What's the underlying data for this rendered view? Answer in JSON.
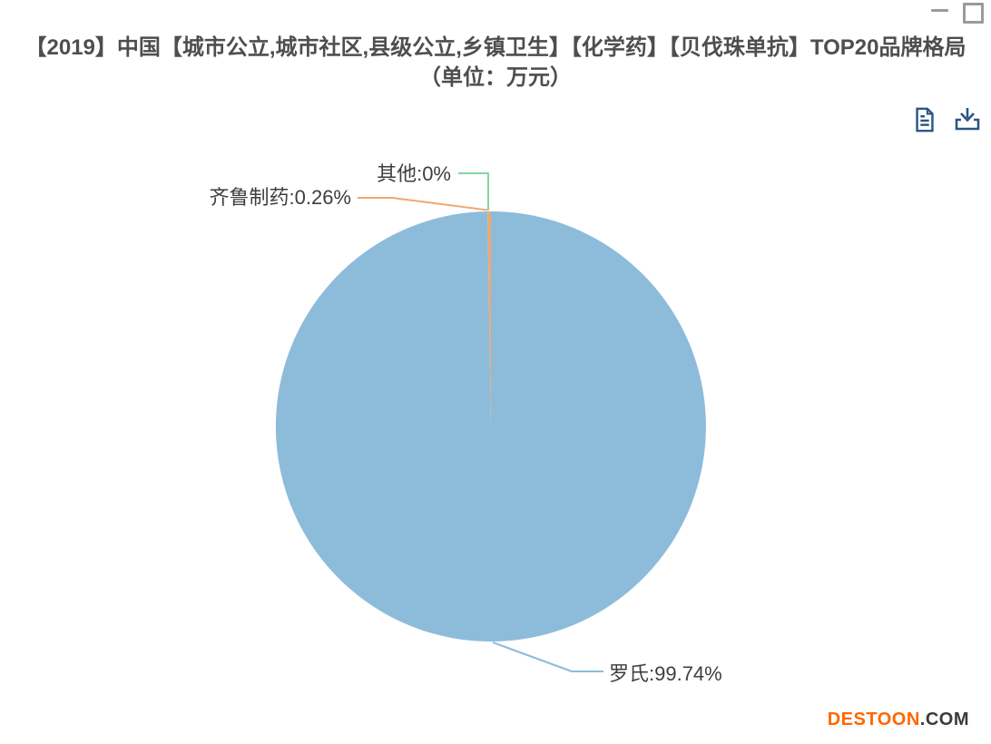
{
  "colors": {
    "title": "#4e4e4e",
    "label": "#3e3e3e",
    "toolbox": "#2d5586",
    "controls": "#9a9a9a",
    "watermark_brand": "#ff6600",
    "watermark_suffix": "#3a3a3a"
  },
  "window": {
    "controls": [
      {
        "icon": "minimize-icon"
      },
      {
        "icon": "maximize-icon"
      }
    ]
  },
  "chart": {
    "title": "【2019】中国【城市公立,城市社区,县级公立,乡镇卫生】【化学药】【贝伐珠单抗】TOP20品牌格局",
    "subtitle": "（单位：万元）"
  },
  "toolbox": {
    "icons": [
      {
        "name": "data-view-icon"
      },
      {
        "name": "save-as-image-icon"
      }
    ]
  },
  "chart_data": {
    "type": "pie",
    "title": "【2019】中国【城市公立,城市社区,县级公立,乡镇卫生】【化学药】【贝伐珠单抗】TOP20品牌格局（单位：万元）",
    "unit": "万元",
    "legend": "none",
    "label_position": "outside",
    "slices": [
      {
        "name": "罗氏",
        "pct": 99.74,
        "color": "#8dbcdb",
        "label": "罗氏:99.74%"
      },
      {
        "name": "齐鲁制药",
        "pct": 0.26,
        "color": "#f0a870",
        "label": "齐鲁制药:0.26%"
      },
      {
        "name": "其他",
        "pct": 0,
        "color": "#84d4a6",
        "label": "其他:0%"
      }
    ]
  },
  "watermark": {
    "brand": "DESTOON",
    "suffix": ".COM"
  }
}
